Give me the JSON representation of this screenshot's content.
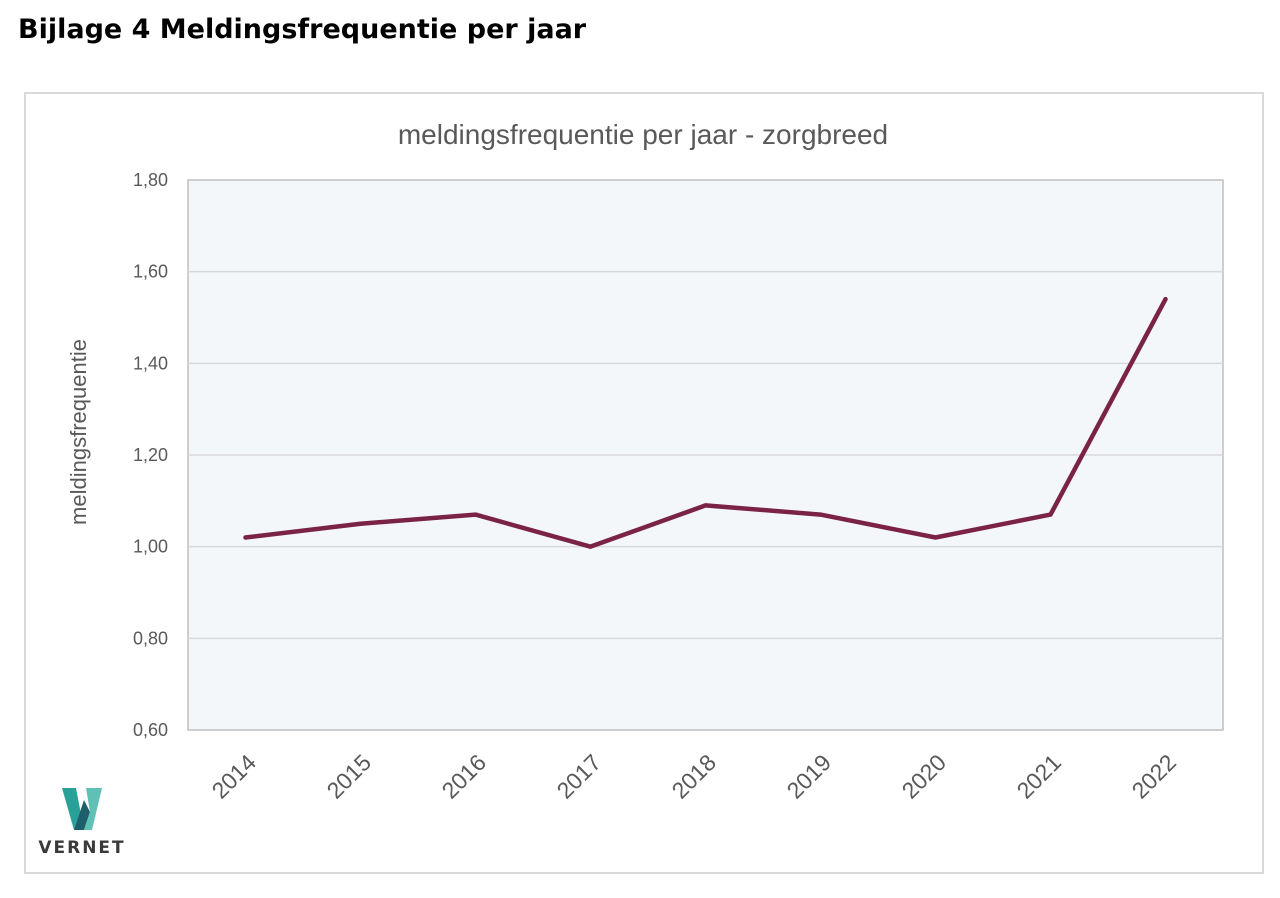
{
  "page": {
    "heading": "Bijlage 4 Meldingsfrequentie per jaar"
  },
  "logo": {
    "text": "VERNET",
    "colors": [
      "#2aa198",
      "#1f6f78",
      "#5fc1b5"
    ]
  },
  "colors": {
    "line": "#7b2346",
    "plot_bg": "#f3f7fa",
    "grid": "#d9d9d9",
    "axis_text": "#595959"
  },
  "chart_data": {
    "type": "line",
    "title": "meldingsfrequentie per jaar - zorgbreed",
    "xlabel": "",
    "ylabel": "meldingsfrequentie",
    "categories": [
      "2014",
      "2015",
      "2016",
      "2017",
      "2018",
      "2019",
      "2020",
      "2021",
      "2022"
    ],
    "series": [
      {
        "name": "meldingsfrequentie",
        "values": [
          1.02,
          1.05,
          1.07,
          1.0,
          1.09,
          1.07,
          1.02,
          1.07,
          1.54
        ]
      }
    ],
    "ylim": [
      0.6,
      1.8
    ],
    "yticks": [
      "0,60",
      "0,80",
      "1,00",
      "1,20",
      "1,40",
      "1,60",
      "1,80"
    ],
    "ytick_values": [
      0.6,
      0.8,
      1.0,
      1.2,
      1.4,
      1.6,
      1.8
    ],
    "grid": true,
    "legend": "none"
  }
}
